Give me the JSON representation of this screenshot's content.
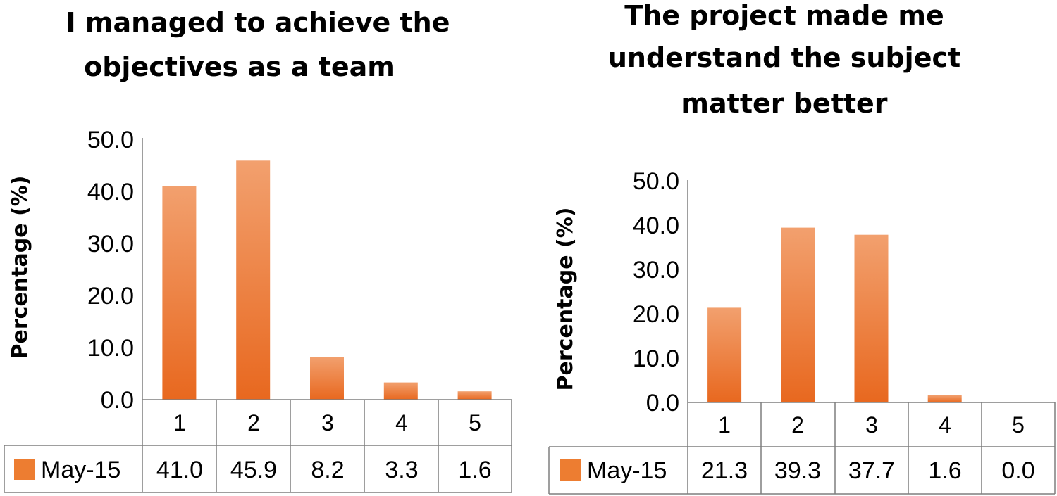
{
  "chart_data": [
    {
      "type": "table",
      "title_lines": [
        "I managed to achieve the",
        "objectives as a team"
      ],
      "ylabel": "Percentage (%)",
      "ylim": [
        0,
        50
      ],
      "y_ticks": [
        "0.0",
        "10.0",
        "20.0",
        "30.0",
        "40.0",
        "50.0"
      ],
      "categories": [
        "1",
        "2",
        "3",
        "4",
        "5"
      ],
      "series": [
        {
          "name": "May-15",
          "values": [
            41.0,
            45.9,
            8.2,
            3.3,
            1.6
          ],
          "labels": [
            "41.0",
            "45.9",
            "8.2",
            "3.3",
            "1.6"
          ]
        }
      ],
      "grid": false,
      "legend": "data-table-left"
    },
    {
      "type": "table",
      "title_lines": [
        "The project made me",
        "understand the subject",
        "matter better"
      ],
      "ylabel": "Percentage (%)",
      "ylim": [
        0,
        50
      ],
      "y_ticks": [
        "0.0",
        "10.0",
        "20.0",
        "30.0",
        "40.0",
        "50.0"
      ],
      "categories": [
        "1",
        "2",
        "3",
        "4",
        "5"
      ],
      "series": [
        {
          "name": "May-15",
          "values": [
            21.3,
            39.3,
            37.7,
            1.6,
            0.0
          ],
          "labels": [
            "21.3",
            "39.3",
            "37.7",
            "1.6",
            "0.0"
          ]
        }
      ],
      "grid": false,
      "legend": "data-table-left"
    }
  ],
  "colors": {
    "bar_light": "#f2a06e",
    "bar_dark": "#e8681f",
    "legend_key": "#ed7d31"
  }
}
